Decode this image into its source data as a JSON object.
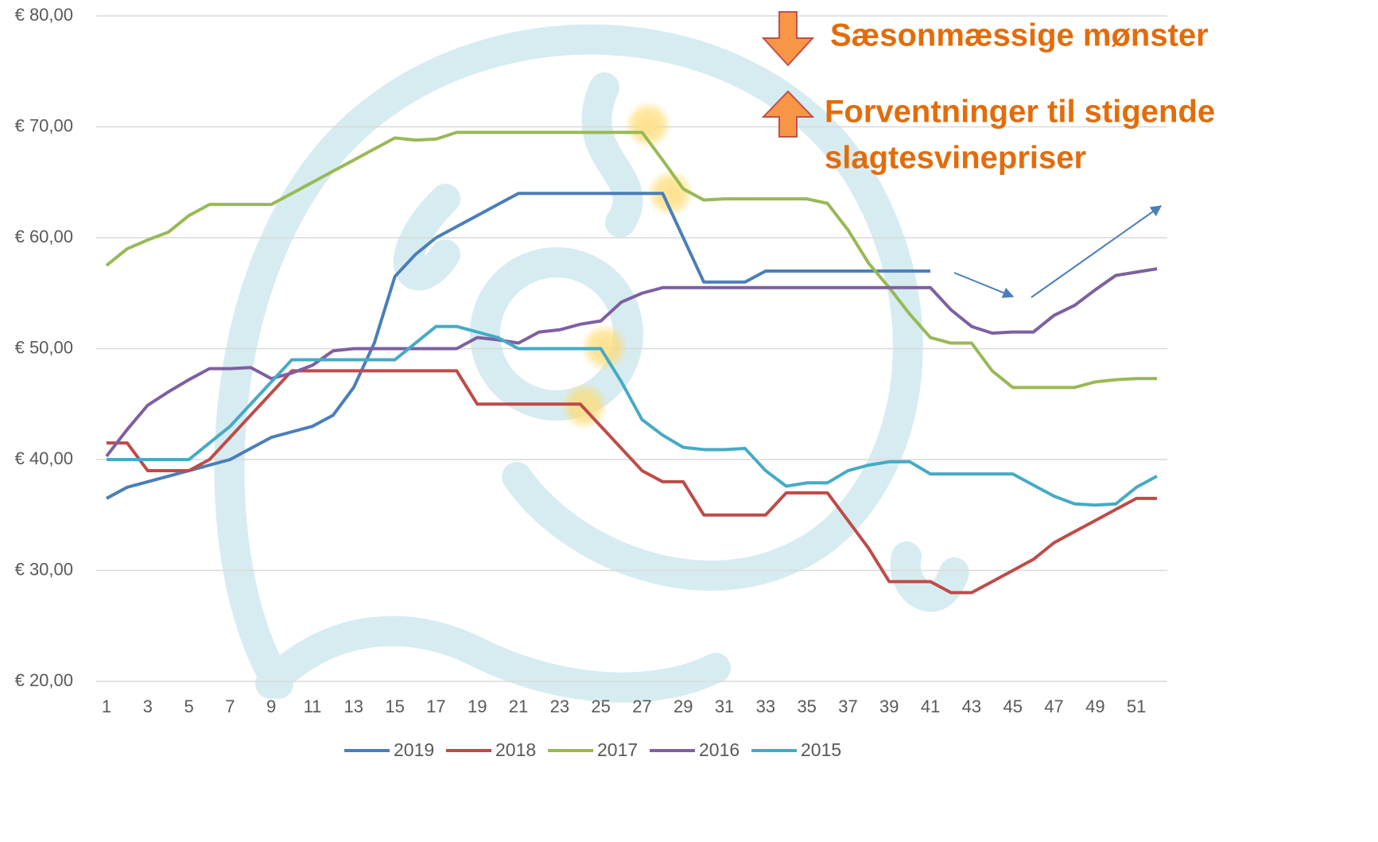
{
  "chart_data": {
    "type": "line",
    "x": [
      1,
      2,
      3,
      4,
      5,
      6,
      7,
      8,
      9,
      10,
      11,
      12,
      13,
      14,
      15,
      16,
      17,
      18,
      19,
      20,
      21,
      22,
      23,
      24,
      25,
      26,
      27,
      28,
      29,
      30,
      31,
      32,
      33,
      34,
      35,
      36,
      37,
      38,
      39,
      40,
      41,
      42,
      43,
      44,
      45,
      46,
      47,
      48,
      49,
      50,
      51,
      52
    ],
    "xlim": [
      0.5,
      52.5
    ],
    "xticks": [
      1,
      3,
      5,
      7,
      9,
      11,
      13,
      15,
      17,
      19,
      21,
      23,
      25,
      27,
      29,
      31,
      33,
      35,
      37,
      39,
      41,
      43,
      45,
      47,
      49,
      51
    ],
    "ylim": [
      20,
      80
    ],
    "yticks": [
      {
        "value": 20,
        "label": "€ 20,00"
      },
      {
        "value": 30,
        "label": "€ 30,00"
      },
      {
        "value": 40,
        "label": "€ 40,00"
      },
      {
        "value": 50,
        "label": "€ 50,00"
      },
      {
        "value": 60,
        "label": "€ 60,00"
      },
      {
        "value": 70,
        "label": "€ 70,00"
      },
      {
        "value": 80,
        "label": "€ 80,00"
      }
    ],
    "grid": true,
    "legend": "bottom",
    "annotations": [
      {
        "text": "Sæsonmæssige mønster",
        "color": "#e36c0a"
      },
      {
        "lines": [
          "Forventninger til stigende",
          "slagtesvinepriser"
        ],
        "color": "#e36c0a"
      }
    ],
    "series": [
      {
        "name": "2019",
        "color": "#4a7ebb",
        "values": [
          36.5,
          37.5,
          38,
          38.5,
          39,
          39.5,
          40,
          41,
          42,
          42.5,
          43,
          44,
          46.5,
          50.5,
          56.5,
          58.5,
          60,
          61,
          62,
          63,
          64,
          64,
          64,
          64,
          64,
          64,
          64,
          64,
          60,
          56,
          56,
          56,
          57,
          57,
          57,
          57,
          57,
          57,
          57,
          57,
          57,
          null,
          null,
          null,
          null,
          null,
          null,
          null,
          null,
          null,
          null,
          null
        ]
      },
      {
        "name": "2018",
        "color": "#be4b48",
        "values": [
          41.5,
          41.5,
          39,
          39,
          39,
          40,
          42,
          44,
          46,
          48,
          48,
          48,
          48,
          48,
          48,
          48,
          48,
          48,
          45,
          45,
          45,
          45,
          45,
          45,
          43,
          41,
          39,
          38,
          38,
          35,
          35,
          35,
          35,
          37,
          37,
          37,
          34.5,
          32,
          29,
          29,
          29,
          28,
          28,
          29,
          30,
          31,
          32.5,
          33.5,
          34.5,
          35.5,
          36.5,
          36.5
        ]
      },
      {
        "name": "2017",
        "color": "#98b954",
        "values": [
          57.5,
          59,
          59.8,
          60.5,
          62,
          63,
          63,
          63,
          63,
          64,
          65,
          66,
          67,
          68,
          69,
          68.8,
          68.9,
          69.5,
          69.5,
          69.5,
          69.5,
          69.5,
          69.5,
          69.5,
          69.5,
          69.5,
          69.5,
          67,
          64.4,
          63.4,
          63.5,
          63.5,
          63.5,
          63.5,
          63.5,
          63.1,
          60.7,
          57.7,
          55.5,
          53.1,
          51,
          50.5,
          50.5,
          48,
          46.5,
          46.5,
          46.5,
          46.5,
          47,
          47.2,
          47.3,
          47.3
        ]
      },
      {
        "name": "2016",
        "color": "#7d60a0",
        "values": [
          40.3,
          42.7,
          44.9,
          46.1,
          47.2,
          48.2,
          48.2,
          48.3,
          47.3,
          47.8,
          48.5,
          49.8,
          50,
          50,
          50,
          50,
          50,
          50,
          51,
          50.8,
          50.5,
          51.5,
          51.7,
          52.2,
          52.5,
          54.2,
          55,
          55.5,
          55.5,
          55.5,
          55.5,
          55.5,
          55.5,
          55.5,
          55.5,
          55.5,
          55.5,
          55.5,
          55.5,
          55.5,
          55.5,
          53.5,
          52,
          51.4,
          51.5,
          51.5,
          53,
          53.9,
          55.3,
          56.6,
          56.9,
          57.2
        ]
      },
      {
        "name": "2015",
        "color": "#46aac5",
        "values": [
          40,
          40,
          40,
          40,
          40,
          41.5,
          43,
          45,
          47,
          49,
          49,
          49,
          49,
          49,
          49,
          50.5,
          52,
          52,
          51.5,
          51,
          50,
          50,
          50,
          50,
          50,
          47,
          43.6,
          42.2,
          41.1,
          40.9,
          40.9,
          41,
          39,
          37.6,
          37.9,
          37.9,
          39,
          39.5,
          39.8,
          39.8,
          38.7,
          38.7,
          38.7,
          38.7,
          38.7,
          37.7,
          36.7,
          36,
          35.9,
          36,
          37.5,
          38.5
        ]
      }
    ]
  }
}
